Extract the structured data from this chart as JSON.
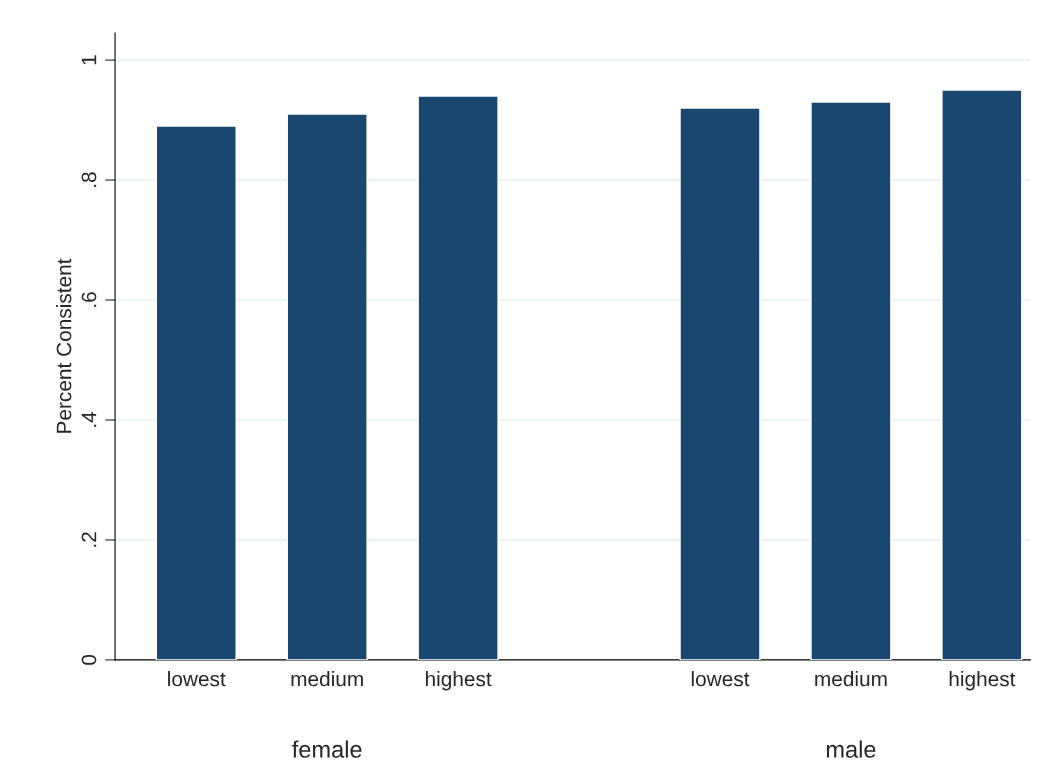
{
  "chart_data": {
    "type": "bar",
    "ylabel": "Percent Consistent",
    "categories": [
      "lowest",
      "medium",
      "highest",
      null,
      "lowest",
      "medium",
      "highest"
    ],
    "values": [
      0.89,
      0.91,
      0.94,
      null,
      0.92,
      0.93,
      0.95
    ],
    "color": "#1a476f",
    "ylim": [
      0,
      1.045
    ],
    "yticks": [
      {
        "value": 0,
        "label": "0"
      },
      {
        "value": 0.2,
        "label": ".2"
      },
      {
        "value": 0.4,
        "label": ".4"
      },
      {
        "value": 0.6,
        "label": ".6"
      },
      {
        "value": 0.8,
        "label": ".8"
      },
      {
        "value": 1,
        "label": "1"
      }
    ],
    "grid": "y",
    "annotations": [
      "female",
      "male"
    ]
  }
}
